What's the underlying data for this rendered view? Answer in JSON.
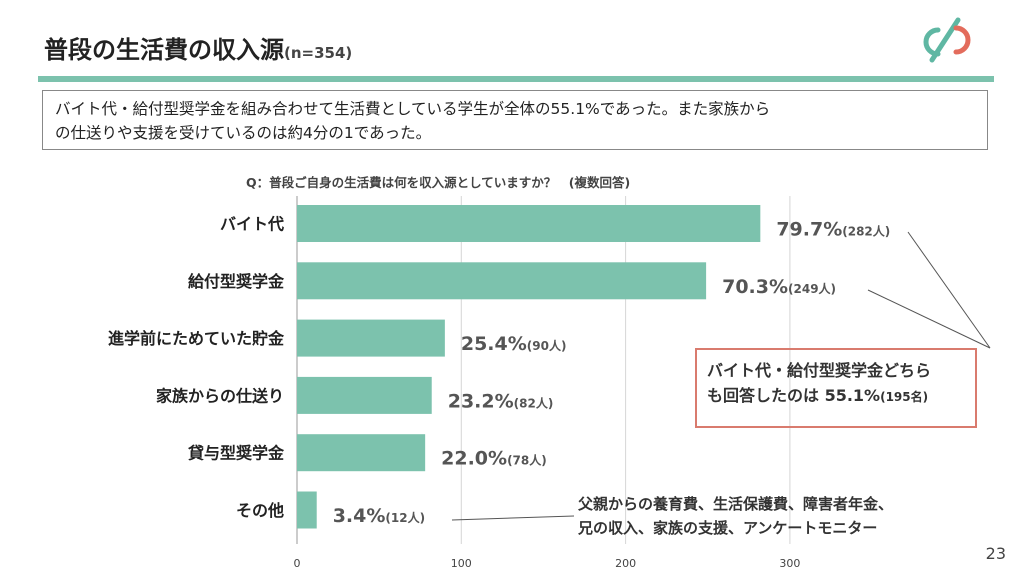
{
  "header": {
    "title": "普段の生活費の収入源",
    "subtitle": "(n=354)"
  },
  "summary": {
    "line1": "バイト代・給付型奨学金を組み合わせて生活費としている学生が全体の55.1%であった。また家族から",
    "line2": "の仕送りや支援を受けているのは約4分の1であった。"
  },
  "question": "Q：普段ご自身の生活費は何を収入源としていますか？　(複数回答)",
  "callout": {
    "line1": "バイト代・給付型奨学金どちら",
    "line2_main": "も回答したのは 55.1%",
    "line2_small": "(195名)"
  },
  "other_note": {
    "line1": "父親からの養育費、生活保護費、障害者年金、",
    "line2": "兄の収入、家族の支援、アンケートモニター"
  },
  "page_number": "23",
  "colors": {
    "bar": "#7cc2ad",
    "accent_rule": "#7cc2ad",
    "callout_border": "#d97b6e",
    "logo_teal": "#5fb7a3",
    "logo_red": "#e36c5c"
  },
  "chart_data": {
    "type": "bar",
    "orientation": "horizontal",
    "categories": [
      "バイト代",
      "給付型奨学金",
      "進学前にためていた貯金",
      "家族からの仕送り",
      "貸与型奨学金",
      "その他"
    ],
    "values": [
      282,
      249,
      90,
      82,
      78,
      12
    ],
    "percent_labels": [
      "79.7%",
      "70.3%",
      "25.4%",
      "23.2%",
      "22.0%",
      "3.4%"
    ],
    "count_labels": [
      "(282人)",
      "(249人)",
      "(90人)",
      "(82人)",
      "(78人)",
      "(12人)"
    ],
    "xticks": [
      0,
      100,
      200,
      300
    ],
    "xlim": [
      0,
      354
    ],
    "grid": "vertical"
  }
}
